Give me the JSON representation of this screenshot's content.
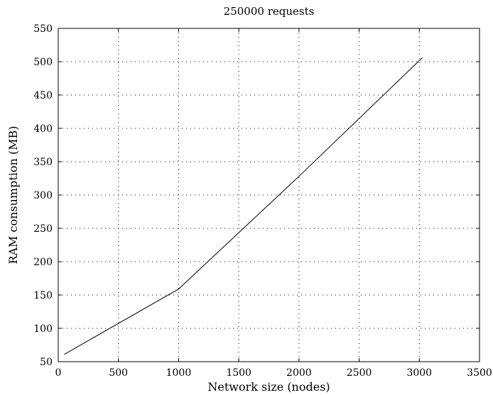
{
  "chart_data": {
    "type": "line",
    "title": "250000 requests",
    "xlabel": "Network size (nodes)",
    "ylabel": "RAM consumption (MB)",
    "xlim": [
      0,
      3500
    ],
    "ylim": [
      50,
      550
    ],
    "xticks": [
      0,
      500,
      1000,
      1500,
      2000,
      2500,
      3000,
      3500
    ],
    "yticks": [
      50,
      100,
      150,
      200,
      250,
      300,
      350,
      400,
      450,
      500,
      550
    ],
    "grid": true,
    "series": [
      {
        "x": [
          50,
          1000,
          2000,
          3025
        ],
        "y": [
          61,
          159,
          328,
          506
        ]
      }
    ]
  }
}
